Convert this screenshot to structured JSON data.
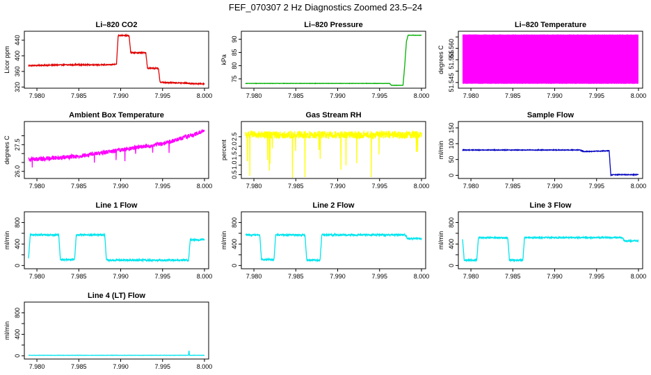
{
  "title": "FEF_070307  2 Hz Diagnostics Zoomed 23.5–24",
  "x_ticks": [
    "7.980",
    "7.985",
    "7.990",
    "7.995",
    "8.000"
  ],
  "chart_data": [
    {
      "type": "line",
      "title": "Li–820 CO2",
      "ylabel": "Licor ppm",
      "color": "#e00000",
      "xlim": [
        7.9785,
        8.0005
      ],
      "ylim": [
        317,
        463
      ],
      "yticks": [
        320,
        360,
        400,
        440
      ],
      "x": [
        7.979,
        7.9835,
        7.9888,
        7.9895,
        7.9897,
        7.991,
        7.9912,
        7.993,
        7.9932,
        7.9945,
        7.9947,
        7.998,
        7.9982,
        8.0
      ],
      "values": [
        375,
        377,
        377,
        379,
        452,
        452,
        408,
        408,
        368,
        368,
        332,
        330,
        329,
        328
      ],
      "noise": 1.2
    },
    {
      "type": "line",
      "title": "Li–820 Pressure",
      "ylabel": "kPa",
      "color": "#00b000",
      "xlim": [
        7.9785,
        8.0005
      ],
      "ylim": [
        71.5,
        93
      ],
      "yticks": [
        75,
        80,
        85,
        90
      ],
      "x": [
        7.979,
        7.9962,
        7.9964,
        7.9978,
        7.998,
        7.9982,
        7.9984,
        8.0
      ],
      "values": [
        73.3,
        73.3,
        72.6,
        72.6,
        80,
        89,
        91.5,
        91.5
      ],
      "noise": 0.05
    },
    {
      "type": "line",
      "title": "Li–820 Temperature",
      "ylabel": "degrees C",
      "color": "#ff00ff",
      "xlim": [
        7.9785,
        8.0005
      ],
      "ylim": [
        51.5425,
        51.5675
      ],
      "yticks": [
        51.545,
        51.55,
        51.555,
        51.56,
        51.565
      ],
      "ytick_labels": [
        "51.545",
        "",
        "51.555",
        "51.560",
        ""
      ],
      "x": [
        7.979,
        8.0
      ],
      "values": [
        51.5445,
        51.566
      ],
      "dense_band": true
    },
    {
      "type": "line",
      "title": "Ambient Box Temperature",
      "ylabel": "degrees C",
      "color": "#ff00ff",
      "xlim": [
        7.9785,
        8.0005
      ],
      "ylim": [
        25.6,
        28.8
      ],
      "yticks": [
        26.0,
        26.5,
        27.0,
        27.5,
        28.0
      ],
      "ytick_labels": [
        "26.0",
        "",
        "",
        "27.5",
        ""
      ],
      "x": [
        7.979,
        7.985,
        7.99,
        7.995,
        7.999,
        8.0
      ],
      "values": [
        26.65,
        26.85,
        27.2,
        27.55,
        28.1,
        28.3
      ],
      "noise": 0.12
    },
    {
      "type": "line",
      "title": "Gas Stream RH",
      "ylabel": "percent",
      "color": "#ffff00",
      "xlim": [
        7.9785,
        8.0005
      ],
      "ylim": [
        0.3,
        3.3
      ],
      "yticks": [
        0.5,
        1.0,
        1.5,
        2.0,
        2.5
      ],
      "ytick_labels": [
        "0.5",
        "1.0",
        "1.5",
        "2.0",
        "2.5"
      ],
      "x": [
        7.979,
        8.0
      ],
      "values": [
        2.6,
        2.6
      ],
      "noise": 0.2
    },
    {
      "type": "line",
      "title": "Sample Flow",
      "ylabel": "ml/min",
      "color": "#0000c0",
      "xlim": [
        7.9785,
        8.0005
      ],
      "ylim": [
        -10,
        170
      ],
      "yticks": [
        0,
        50,
        100,
        150
      ],
      "x": [
        7.979,
        7.993,
        7.9935,
        7.996,
        7.9965,
        7.9967,
        7.997,
        8.0
      ],
      "values": [
        80,
        80,
        75,
        77,
        78,
        0,
        2,
        2
      ],
      "noise": 1.0
    },
    {
      "type": "line",
      "title": "Line 1 Flow",
      "ylabel": "ml/min",
      "color": "#00e5ee",
      "xlim": [
        7.9785,
        8.0005
      ],
      "ylim": [
        -60,
        1000
      ],
      "yticks": [
        0,
        200,
        400,
        600,
        800
      ],
      "ytick_labels": [
        "0",
        "",
        "400",
        "",
        "800"
      ],
      "x": [
        7.979,
        7.9792,
        7.9826,
        7.9828,
        7.9845,
        7.9847,
        7.9881,
        7.9883,
        7.9981,
        7.9983,
        8.0
      ],
      "values": [
        120,
        570,
        570,
        110,
        110,
        570,
        570,
        100,
        100,
        480,
        480
      ],
      "noise": 15
    },
    {
      "type": "line",
      "title": "Line 2 Flow",
      "ylabel": "ml/min",
      "color": "#00e5ee",
      "xlim": [
        7.9785,
        8.0005
      ],
      "ylim": [
        -60,
        1000
      ],
      "yticks": [
        0,
        200,
        400,
        600,
        800
      ],
      "ytick_labels": [
        "0",
        "",
        "400",
        "",
        "800"
      ],
      "x": [
        7.979,
        7.9807,
        7.9809,
        7.9824,
        7.9826,
        7.9861,
        7.9863,
        7.9879,
        7.9881,
        7.9981,
        7.9983,
        8.0
      ],
      "values": [
        570,
        570,
        110,
        110,
        570,
        570,
        100,
        100,
        570,
        570,
        500,
        500
      ],
      "noise": 15
    },
    {
      "type": "line",
      "title": "Line 3 Flow",
      "ylabel": "ml/min",
      "color": "#00e5ee",
      "xlim": [
        7.9785,
        8.0005
      ],
      "ylim": [
        -60,
        1000
      ],
      "yticks": [
        0,
        200,
        400,
        600,
        800
      ],
      "ytick_labels": [
        "0",
        "",
        "400",
        "",
        "800"
      ],
      "x": [
        7.979,
        7.9792,
        7.9807,
        7.9809,
        7.9844,
        7.9846,
        7.9862,
        7.9864,
        7.9981,
        7.9983,
        8.0
      ],
      "values": [
        500,
        100,
        100,
        520,
        520,
        100,
        100,
        520,
        520,
        460,
        460
      ],
      "noise": 12
    },
    {
      "type": "line",
      "title": "Line 4 (LT) Flow",
      "ylabel": "ml/min",
      "color": "#00e5ee",
      "xlim": [
        7.9785,
        8.0005
      ],
      "ylim": [
        -60,
        1000
      ],
      "yticks": [
        0,
        200,
        400,
        600,
        800
      ],
      "ytick_labels": [
        "0",
        "",
        "400",
        "",
        "800"
      ],
      "x": [
        7.979,
        7.9981,
        7.99815,
        7.9982,
        8.0
      ],
      "values": [
        10,
        10,
        110,
        10,
        10
      ],
      "noise": 2
    }
  ]
}
